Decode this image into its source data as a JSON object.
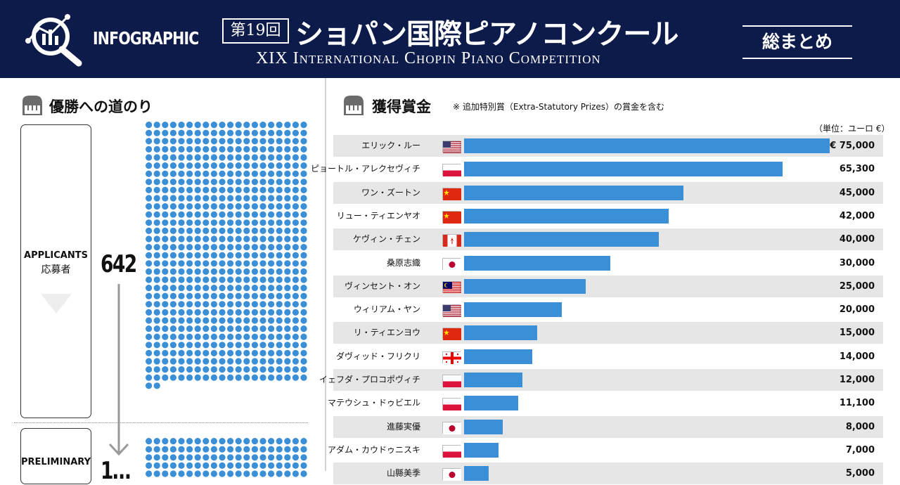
{
  "header": {
    "logo_text": "INFOGRAPHIC",
    "edition": "第19回",
    "title_jp": "ショパン国際ピアノコンクール",
    "title_en": "XIX International Chopin Piano Competition",
    "summary_label": "総まとめ"
  },
  "left": {
    "section_title": "優勝への道のり",
    "section_icon": "piano-icon",
    "stages": [
      {
        "label_en": "APPLICANTS",
        "label_jp": "応募者",
        "count": "642",
        "dots": 642
      },
      {
        "label_en": "PRELIMINARY",
        "label_jp": "",
        "count": "1…",
        "dots": 160
      }
    ]
  },
  "right": {
    "section_title": "獲得賞金",
    "section_icon": "piano-icon",
    "note": "※ 追加特別賞（Extra-Statutory Prizes）の賞金を含む",
    "unit": "（単位：ユーロ €）"
  },
  "chart_data": {
    "type": "bar",
    "title": "獲得賞金",
    "unit": "ユーロ €",
    "orientation": "horizontal",
    "categories": [
      "エリック・ルー",
      "ピョートル・アレクセヴィチ",
      "ワン・ズートン",
      "リュー・ティエンヤオ",
      "ケヴィン・チェン",
      "桑原志織",
      "ヴィンセント・オン",
      "ウィリアム・ヤン",
      "リ・ティエンヨウ",
      "ダヴィッド・フリクリ",
      "イェフダ・プロコポヴィチ",
      "マテウシュ・ドゥビエル",
      "進藤実優",
      "アダム・カウドゥニスキ",
      "山縣美季"
    ],
    "values": [
      75000,
      65300,
      45000,
      42000,
      40000,
      30000,
      25000,
      20000,
      15000,
      14000,
      12000,
      11100,
      8000,
      7000,
      5000
    ],
    "labels": [
      "€ 75,000",
      "65,300",
      "45,000",
      "42,000",
      "40,000",
      "30,000",
      "25,000",
      "20,000",
      "15,000",
      "14,000",
      "12,000",
      "11,100",
      "8,000",
      "7,000",
      "5,000"
    ],
    "flags": [
      "us",
      "pl",
      "cn",
      "cn",
      "ca",
      "jp",
      "my",
      "us",
      "cn",
      "ge",
      "pl",
      "pl",
      "jp",
      "pl",
      "jp"
    ],
    "xlim": [
      0,
      75000
    ]
  },
  "colors": {
    "header_bg": "#0d1b4a",
    "bar": "#3a8fd6",
    "dot": "#3a8fd6",
    "row_shade": "#e6e6e6"
  }
}
